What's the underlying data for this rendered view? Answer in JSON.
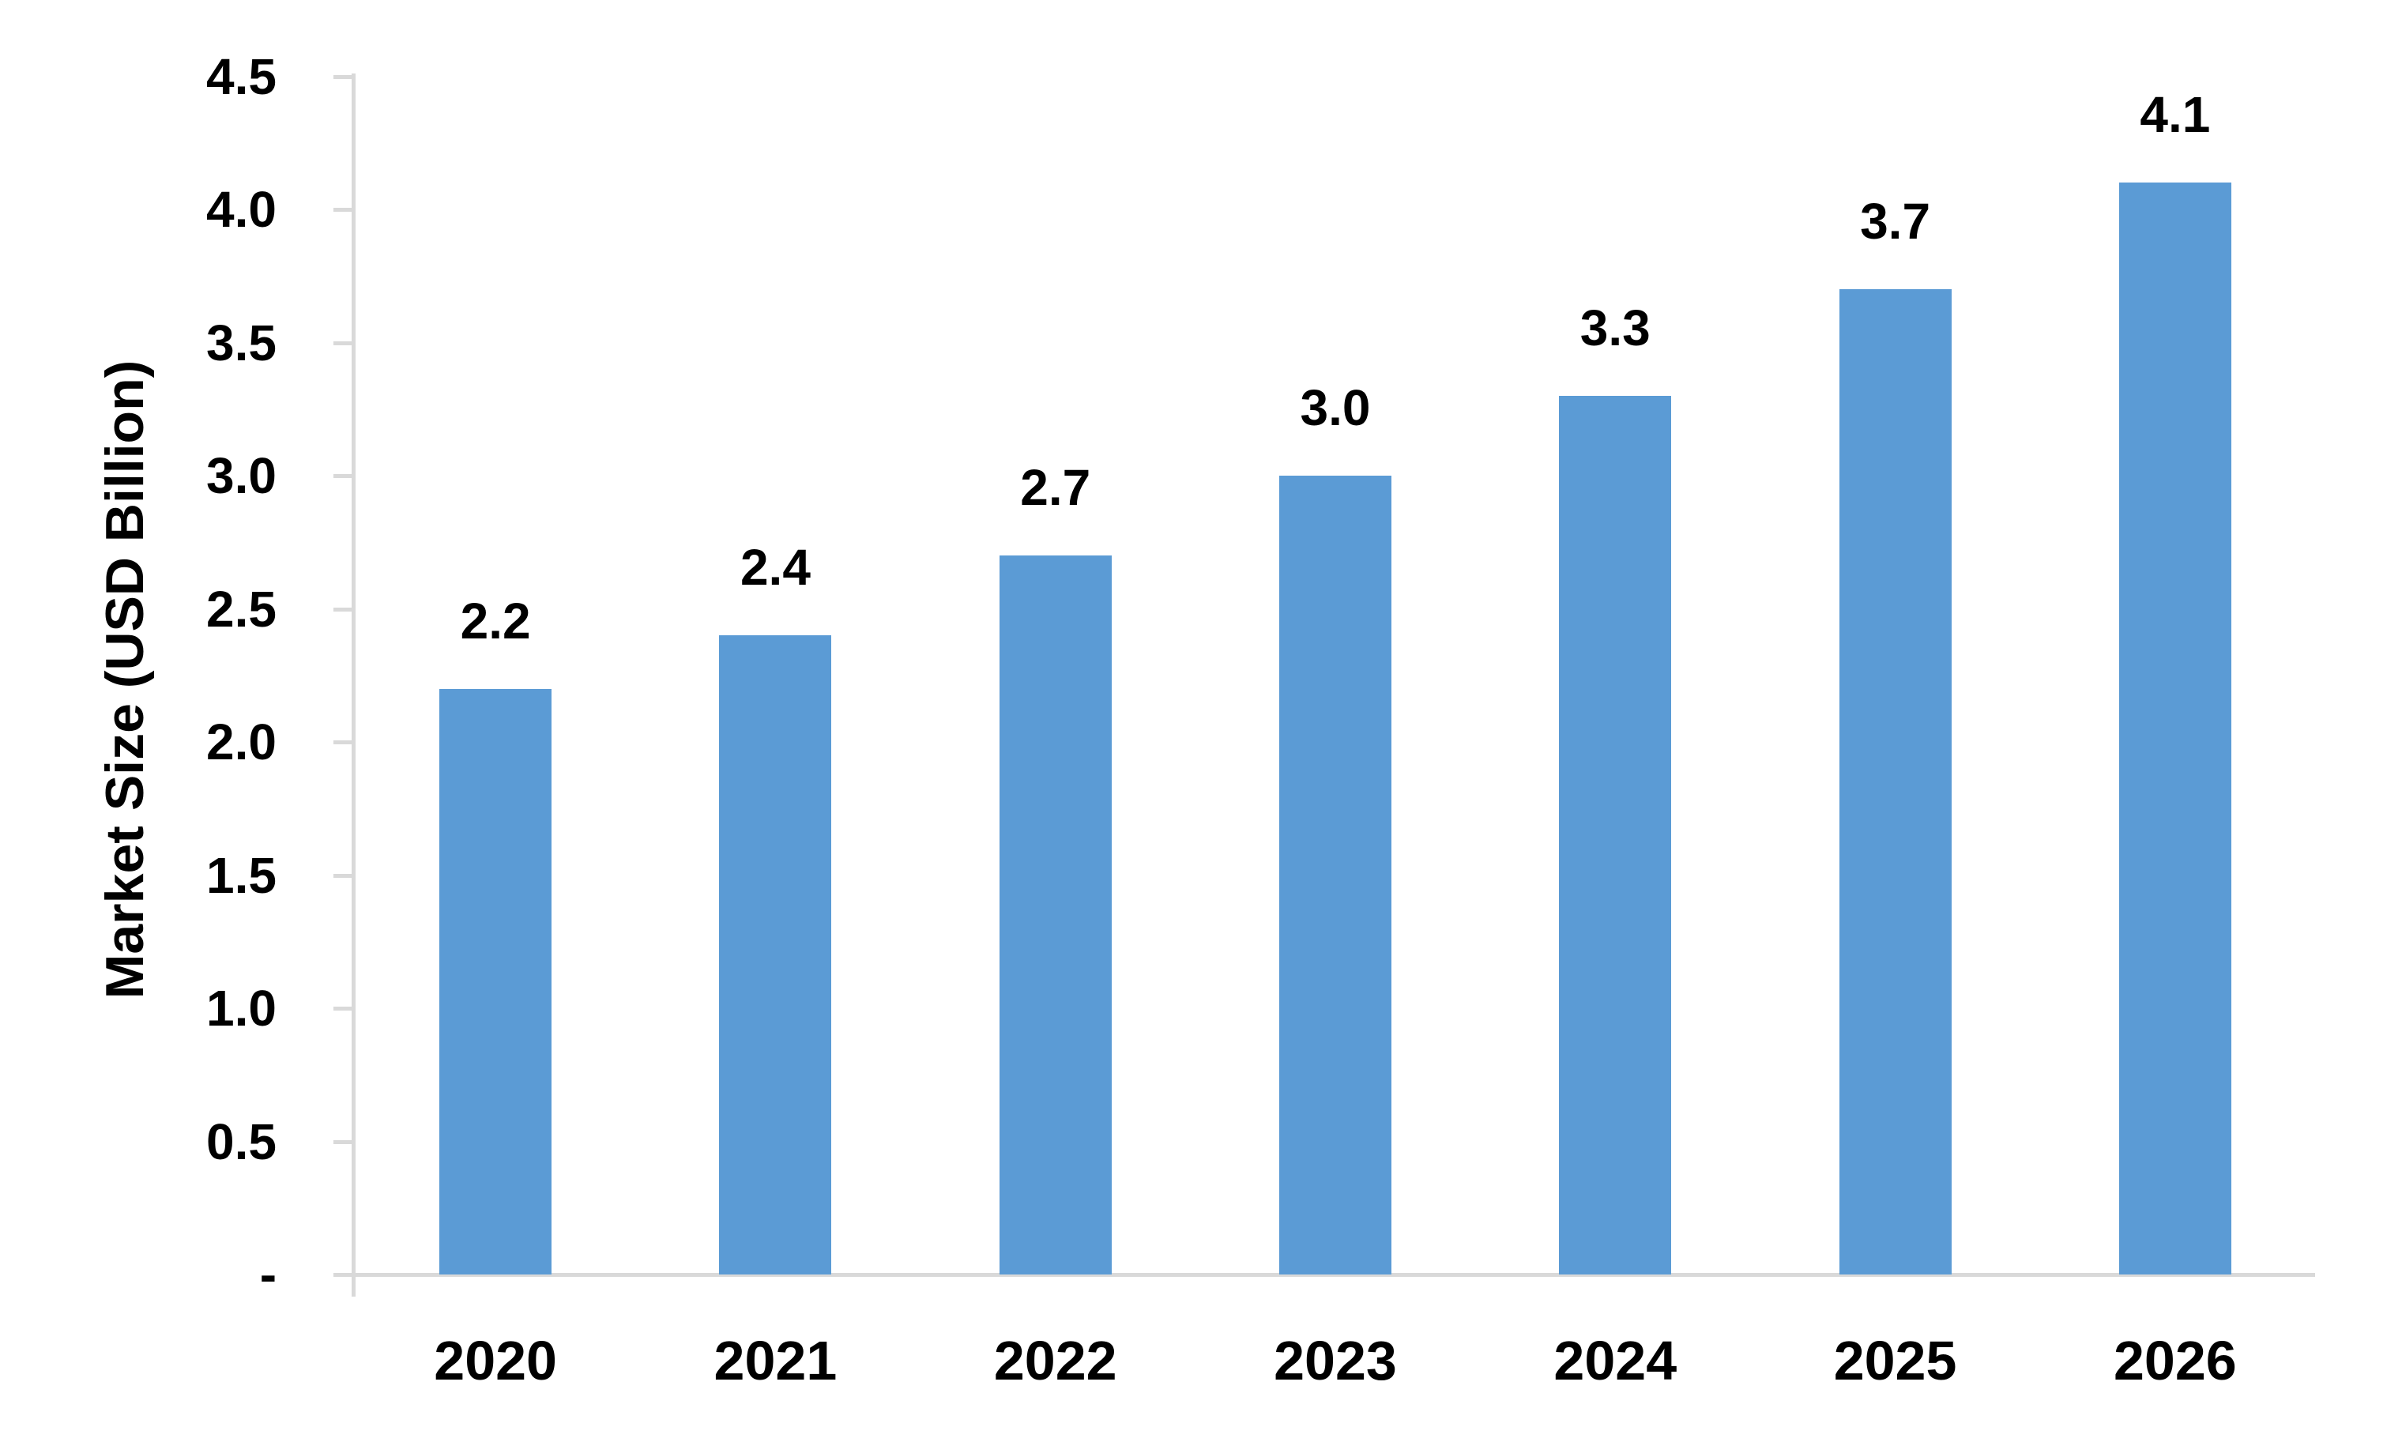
{
  "chart_data": {
    "type": "bar",
    "categories": [
      "2020",
      "2021",
      "2022",
      "2023",
      "2024",
      "2025",
      "2026"
    ],
    "values": [
      2.2,
      2.4,
      2.7,
      3.0,
      3.3,
      3.7,
      4.1
    ],
    "bar_labels": [
      "2.2",
      "2.4",
      "2.7",
      "3.0",
      "3.3",
      "3.7",
      "4.1"
    ],
    "title": "",
    "xlabel": "",
    "ylabel": "Market Size (USD Billion)",
    "ylim": [
      0,
      4.5
    ],
    "y_tick_step": 0.5,
    "y_tick_labels": [
      "-",
      "0.5",
      "1.0",
      "1.5",
      "2.0",
      "2.5",
      "3.0",
      "3.5",
      "4.0",
      "4.5"
    ],
    "grid": false,
    "legend_position": "none",
    "colors": {
      "bar_fill": "#5B9BD5",
      "axis_line": "#D9D9D9",
      "label_text": "#000000",
      "background": "#FFFFFF"
    }
  }
}
